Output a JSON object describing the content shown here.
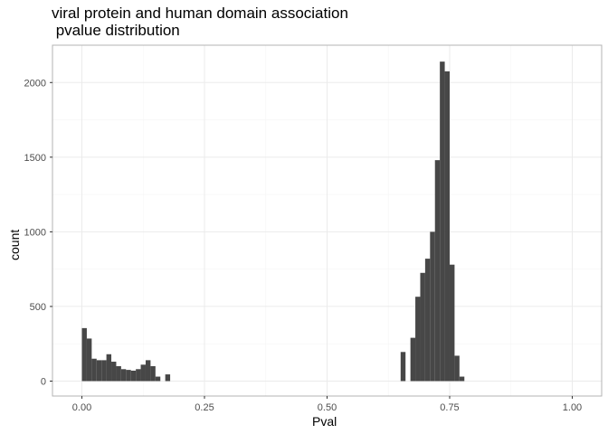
{
  "chart_data": {
    "type": "bar",
    "title": "viral protein and human domain association\n pvalue distribution",
    "title_lines": [
      "viral protein and human domain association",
      " pvalue distribution"
    ],
    "xlabel": "Pval",
    "ylabel": "count",
    "xlim": [
      -0.06,
      1.06
    ],
    "ylim": [
      -100,
      2250
    ],
    "xticks": [
      0.0,
      0.25,
      0.5,
      0.75,
      1.0
    ],
    "xtick_labels": [
      "0.00",
      "0.25",
      "0.50",
      "0.75",
      "1.00"
    ],
    "yticks": [
      0,
      500,
      1000,
      1500,
      2000
    ],
    "ytick_labels": [
      "0",
      "500",
      "1000",
      "1500",
      "2000"
    ],
    "grid": true,
    "bin_width": 0.01,
    "bins_x": [
      0.0,
      0.01,
      0.02,
      0.03,
      0.04,
      0.05,
      0.06,
      0.07,
      0.08,
      0.09,
      0.1,
      0.11,
      0.12,
      0.13,
      0.14,
      0.15,
      0.17,
      0.65,
      0.67,
      0.68,
      0.69,
      0.7,
      0.71,
      0.72,
      0.73,
      0.74,
      0.75,
      0.76,
      0.77
    ],
    "values": [
      355,
      285,
      150,
      140,
      140,
      180,
      130,
      100,
      80,
      75,
      70,
      80,
      110,
      140,
      100,
      30,
      45,
      195,
      290,
      565,
      725,
      820,
      1000,
      1480,
      2140,
      2075,
      780,
      170,
      30
    ],
    "colors": {
      "bar": "#474747",
      "panel_border": "#b3b3b3",
      "grid_major": "#ebebeb",
      "grid_minor": "#f5f5f5"
    }
  }
}
